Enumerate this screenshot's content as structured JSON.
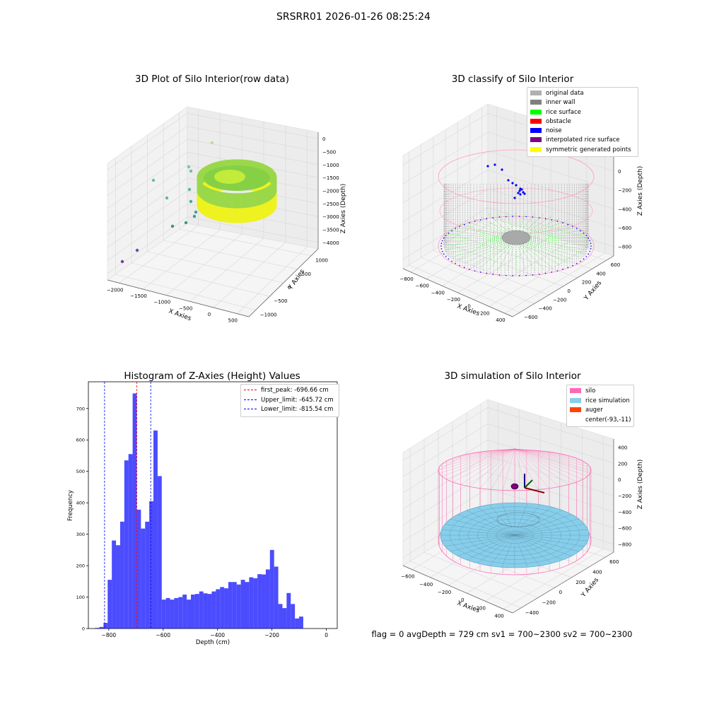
{
  "figure": {
    "suptitle": "SRSRR01 2026-01-26 08:25:24",
    "status_text": "flag = 0     avgDepth = 729 cm  sv1 = 700~2300  sv2 = 700~2300"
  },
  "panels": {
    "raw": {
      "title": "3D Plot of Silo Interior(row data)",
      "xlabel": "X Axies",
      "ylabel": "Y Axies",
      "zlabel": "Z Axies (Depth)",
      "xticks": [
        "−2000",
        "−1500",
        "−1000",
        "−500",
        "0",
        "500"
      ],
      "yticks": [
        "−1000",
        "−500",
        "0",
        "500",
        "1000"
      ],
      "zticks": [
        "0",
        "−500",
        "−1000",
        "−1500",
        "−2000",
        "−2500",
        "−3000",
        "−3500",
        "−4000"
      ]
    },
    "classify": {
      "title": "3D classify of Silo Interior",
      "xlabel": "X Axies",
      "ylabel": "Y Axies",
      "zlabel": "Z Axies (Depth)",
      "xticks": [
        "−800",
        "−600",
        "−400",
        "−200",
        "0",
        "200",
        "400"
      ],
      "yticks": [
        "−600",
        "−400",
        "−200",
        "0",
        "200",
        "400",
        "600"
      ],
      "zticks": [
        "200",
        "0",
        "−200",
        "−400",
        "−600",
        "−800"
      ],
      "legend": [
        {
          "label": "original data",
          "color": "#b0b0b0"
        },
        {
          "label": "inner wall",
          "color": "#808080"
        },
        {
          "label": "rice surface",
          "color": "#00ff00"
        },
        {
          "label": "obstacle",
          "color": "#ff0000"
        },
        {
          "label": "noise",
          "color": "#0000ff"
        },
        {
          "label": "interpolated rice surface",
          "color": "#800080"
        },
        {
          "label": "symmetric generated points",
          "color": "#ffff00"
        }
      ]
    },
    "simulation": {
      "title": "3D simulation of Silo Interior",
      "xlabel": "X Axies",
      "ylabel": "Y Axies",
      "zlabel": "Z Axies (Depth)",
      "xticks": [
        "−600",
        "−400",
        "−200",
        "0",
        "200",
        "400"
      ],
      "yticks": [
        "−400",
        "−200",
        "0",
        "200",
        "400",
        "600"
      ],
      "zticks": [
        "400",
        "200",
        "0",
        "−200",
        "−400",
        "−600",
        "−800"
      ],
      "legend": [
        {
          "label": "silo",
          "color": "#ff69b4"
        },
        {
          "label": "rice simulation",
          "color": "#87ceeb"
        },
        {
          "label": "auger",
          "color": "#ff4500"
        },
        {
          "label": "center(-93,-11)",
          "color": ""
        }
      ]
    }
  },
  "chart_data": [
    {
      "type": "bar",
      "title": "Histogram of Z-Axies (Height) Values",
      "xlabel": "Depth (cm)",
      "ylabel": "Frequency",
      "xlim": [
        -875,
        40
      ],
      "ylim": [
        0,
        785
      ],
      "bar_color": "#0000ff",
      "xticks": [
        -800,
        -600,
        -400,
        -200,
        0
      ],
      "xtick_labels": [
        "−800",
        "−600",
        "−400",
        "−200",
        "0"
      ],
      "yticks": [
        0,
        100,
        200,
        300,
        400,
        500,
        600,
        700
      ],
      "bin_start": -850,
      "bin_width": 15.3,
      "values": [
        2,
        5,
        18,
        155,
        280,
        265,
        340,
        535,
        555,
        748,
        378,
        318,
        340,
        405,
        630,
        485,
        92,
        97,
        92,
        97,
        100,
        108,
        92,
        108,
        110,
        118,
        112,
        110,
        118,
        125,
        132,
        128,
        148,
        148,
        140,
        155,
        148,
        163,
        160,
        173,
        172,
        188,
        250,
        197,
        78,
        65,
        113,
        78,
        32,
        38
      ],
      "vlines": [
        {
          "label": "first_peak: -696.66 cm",
          "x": -696.66,
          "color": "#ff0000"
        },
        {
          "label": "Upper_limit: -645.72 cm",
          "x": -645.72,
          "color": "#0000ff"
        },
        {
          "label": "Lower_limit: -815.54 cm",
          "x": -815.54,
          "color": "#0000ff"
        }
      ]
    }
  ]
}
